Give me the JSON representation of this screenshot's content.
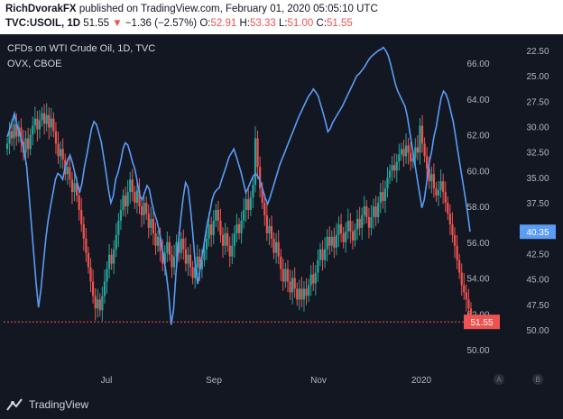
{
  "header": {
    "publisher": "RichDvorakFX",
    "published_text": "published on TradingView.com, February 01, 2020 05:05:10 UTC",
    "symbol_label": "TVC:USOIL, 1D",
    "last": "51.55",
    "change": "−1.36 (−2.57%)",
    "o_label": "O:",
    "o_val": "52.91",
    "h_label": "H:",
    "h_val": "53.33",
    "l_label": "L:",
    "l_val": "51.00",
    "c_label": "C:",
    "c_val": "51.55"
  },
  "overlay": {
    "title": "CFDs on WTI Crude Oil, 1D, TVC",
    "subtitle": "OVX, CBOE"
  },
  "footer": {
    "brand": "TradingView",
    "scale_a": "A",
    "scale_b": "B"
  },
  "colors": {
    "up": "#26a69a",
    "down": "#ef5350",
    "ovx": "#5b9cf6",
    "bg": "#131722",
    "grid": "#1e2230"
  },
  "chart_data": {
    "type": "line",
    "x_labels": [
      "Jul",
      "Sep",
      "Nov",
      "2020"
    ],
    "price_axis": {
      "ticks": [
        "66.00",
        "64.00",
        "62.00",
        "60.00",
        "58.00",
        "56.00",
        "54.00",
        "52.00",
        "50.00"
      ],
      "ylim": [
        49.0,
        66.6
      ]
    },
    "ovx_axis": {
      "ticks": [
        "22.50",
        "25.00",
        "27.50",
        "30.00",
        "32.50",
        "35.00",
        "37.50",
        "40.00",
        "42.50",
        "45.00",
        "47.50",
        "50.00"
      ],
      "ylim": [
        21.0,
        51.0
      ]
    },
    "last_price_tag": "51.55",
    "last_ovx_tag": "40.35",
    "series": [
      {
        "name": "USOIL",
        "values": [
          61.5,
          62.2,
          61.8,
          62.6,
          61.9,
          62.4,
          61.6,
          61.0,
          61.8,
          61.2,
          62.0,
          62.5,
          62.9,
          62.3,
          62.8,
          63.2,
          62.6,
          63.1,
          62.4,
          62.9,
          62.2,
          61.5,
          60.8,
          61.2,
          60.6,
          59.8,
          60.2,
          59.5,
          58.8,
          59.3,
          58.6,
          57.8,
          57.0,
          56.2,
          55.4,
          54.6,
          53.8,
          53.0,
          52.3,
          52.8,
          52.2,
          53.0,
          53.8,
          54.5,
          55.3,
          54.8,
          55.6,
          56.4,
          57.2,
          57.8,
          58.6,
          58.0,
          58.8,
          59.5,
          58.8,
          58.2,
          58.9,
          58.0,
          57.5,
          58.2,
          57.6,
          56.8,
          57.3,
          56.5,
          55.8,
          56.3,
          55.5,
          54.8,
          55.4,
          56.0,
          55.3,
          54.6,
          55.2,
          56.0,
          55.4,
          56.2,
          55.6,
          54.8,
          55.3,
          54.6,
          54.0,
          54.6,
          55.2,
          54.5,
          55.0,
          55.6,
          56.2,
          57.0,
          56.4,
          57.2,
          57.8,
          57.2,
          56.4,
          55.8,
          56.5,
          55.8,
          55.2,
          55.8,
          56.5,
          57.0,
          56.5,
          57.2,
          57.8,
          58.4,
          57.8,
          58.5,
          59.2,
          61.8,
          60.2,
          59.0,
          58.2,
          57.5,
          56.5,
          56.9,
          56.2,
          55.4,
          56.0,
          55.2,
          54.5,
          53.8,
          54.5,
          53.8,
          53.2,
          54.0,
          53.4,
          52.8,
          53.4,
          52.8,
          53.4,
          53.0,
          53.6,
          54.2,
          53.7,
          54.3,
          55.0,
          55.6,
          55.0,
          55.6,
          56.3,
          55.8,
          56.3,
          55.7,
          56.4,
          57.0,
          56.5,
          56.0,
          56.6,
          57.2,
          56.6,
          56.1,
          56.7,
          57.3,
          56.8,
          57.5,
          58.0,
          57.4,
          56.8,
          57.4,
          58.0,
          57.4,
          58.2,
          58.8,
          58.3,
          59.0,
          59.6,
          60.0,
          60.3,
          60.0,
          60.5,
          60.9,
          61.2,
          60.8,
          61.4,
          61.0,
          60.5,
          60.7,
          61.3,
          61.0,
          62.5,
          61.5,
          60.8,
          60.1,
          59.4,
          59.8,
          59.0,
          58.6,
          58.9,
          59.4,
          58.8,
          58.2,
          57.6,
          57.0,
          56.4,
          55.8,
          55.0,
          54.3,
          53.6,
          53.2,
          52.8,
          52.3,
          51.55
        ],
        "color": "#26a69a"
      },
      {
        "name": "OVX",
        "values": [
          31.0,
          30.3,
          29.5,
          28.7,
          29.8,
          30.5,
          31.3,
          32.5,
          33.8,
          36.5,
          39.5,
          42.5,
          45.5,
          47.8,
          46.0,
          43.5,
          41.0,
          39.2,
          37.8,
          36.5,
          35.2,
          34.6,
          34.8,
          35.2,
          34.0,
          33.4,
          32.8,
          33.5,
          34.5,
          35.5,
          36.5,
          35.6,
          34.0,
          32.8,
          31.5,
          30.2,
          29.5,
          29.8,
          30.6,
          31.5,
          33.0,
          34.5,
          36.2,
          37.5,
          36.8,
          35.2,
          34.5,
          33.5,
          32.2,
          31.6,
          31.8,
          32.6,
          33.5,
          34.2,
          35.5,
          36.8,
          37.2,
          36.5,
          35.8,
          36.2,
          37.5,
          38.5,
          39.2,
          40.2,
          41.5,
          43.0,
          44.5,
          46.5,
          49.5,
          48.0,
          44.5,
          41.5,
          39.0,
          37.0,
          35.5,
          36.0,
          38.0,
          40.5,
          43.5,
          45.5,
          44.0,
          42.5,
          41.0,
          39.5,
          38.5,
          37.2,
          36.5,
          36.2,
          36.0,
          35.2,
          34.5,
          33.8,
          33.0,
          32.6,
          32.2,
          32.9,
          33.7,
          34.5,
          35.5,
          36.5,
          36.0,
          35.4,
          34.9,
          34.6,
          34.9,
          35.4,
          36.2,
          37.0,
          37.6,
          37.0,
          36.2,
          35.4,
          34.6,
          33.8,
          33.2,
          32.6,
          32.0,
          31.4,
          30.8,
          30.2,
          29.6,
          29.0,
          28.5,
          28.0,
          27.5,
          27.0,
          26.7,
          26.3,
          26.6,
          27.0,
          27.8,
          28.6,
          29.5,
          30.5,
          30.2,
          29.6,
          29.2,
          28.8,
          28.4,
          28.0,
          27.5,
          27.0,
          26.5,
          26.0,
          25.5,
          25.0,
          24.8,
          24.5,
          24.2,
          23.8,
          23.4,
          23.1,
          22.9,
          22.7,
          22.5,
          22.4,
          22.2,
          22.5,
          23.0,
          23.8,
          24.8,
          25.8,
          26.5,
          27.0,
          27.5,
          28.0,
          29.0,
          30.5,
          32.0,
          33.5,
          35.0,
          36.5,
          38.0,
          37.2,
          35.5,
          33.6,
          32.5,
          31.0,
          30.0,
          28.5,
          27.2,
          26.5,
          26.8,
          27.5,
          28.5,
          29.5,
          31.0,
          32.5,
          34.0,
          35.5,
          37.0,
          38.5,
          40.35
        ]
      }
    ]
  }
}
